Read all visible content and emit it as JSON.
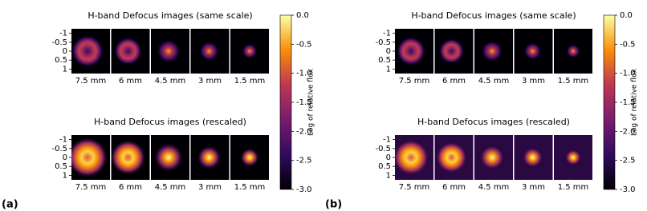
{
  "panels": [
    {
      "label": "(a)",
      "rows": [
        {
          "title": "H-band Defocus images (same scale)",
          "images": [
            "7.5 mm",
            "6 mm",
            "4.5 mm",
            "3 mm",
            "1.5 mm"
          ]
        },
        {
          "title": "H-band Defocus images (rescaled)",
          "images": [
            "7.5 mm",
            "6 mm",
            "4.5 mm",
            "3 mm",
            "1.5 mm"
          ]
        }
      ],
      "yticks": [
        -1,
        -0.5,
        0,
        0.5,
        1
      ],
      "colorbar": {
        "label": "Log of relative flux",
        "lim": [
          -3,
          0
        ],
        "ticks": [
          {
            "value": 0,
            "label": "0.0"
          },
          -0.5,
          {
            "value": -1,
            "label": "-1.0"
          },
          -1.5,
          {
            "value": -2,
            "label": "-2.0"
          },
          -2.5,
          {
            "value": -3,
            "label": "-3.0"
          }
        ]
      }
    },
    {
      "label": "(b)",
      "rows": [
        {
          "title": "H-band Defocus images (same scale)",
          "images": [
            "7.5 mm",
            "6 mm",
            "4.5 mm",
            "3 mm",
            "1.5 mm"
          ]
        },
        {
          "title": "H-band Defocus images (rescaled)",
          "images": [
            "7.5 mm",
            "6 mm",
            "4.5 mm",
            "3 mm",
            "1.5 mm"
          ]
        }
      ],
      "yticks": [
        -1,
        -0.5,
        0,
        0.5,
        1
      ],
      "colorbar": {
        "label": "Log of relative flux",
        "lim": [
          -3,
          0
        ],
        "ticks": [
          {
            "value": 0,
            "label": "0.0"
          },
          -0.5,
          {
            "value": -1,
            "label": "-1.0"
          },
          -1.5,
          {
            "value": -2,
            "label": "-2.0"
          },
          -2.5,
          {
            "value": -3,
            "label": "-3.0"
          }
        ]
      }
    }
  ]
}
